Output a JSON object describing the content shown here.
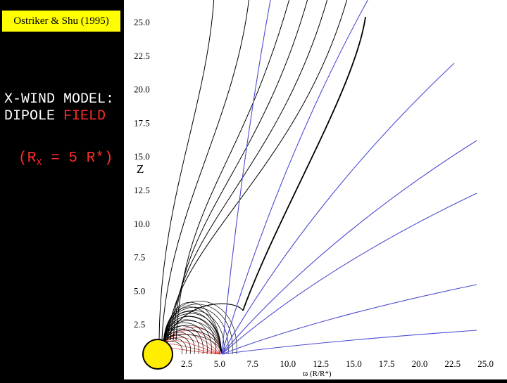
{
  "reference": "Ostriker & Shu (1995)",
  "title": {
    "word1": "X-WIND MODEL:",
    "word2": "DIPOLE",
    "word3": "FIELD"
  },
  "equation": {
    "open": "(R",
    "sub": "X",
    "rest": " = 5 R",
    "star": "*",
    "close": ")"
  },
  "diagram": {
    "y_ticks": [
      "25.0",
      "22.5",
      "20.0",
      "17.5",
      "15.0",
      "12.5",
      "10.0",
      "7.5",
      "5.0",
      "2.5"
    ],
    "x_ticks": [
      "2.5",
      "5.0",
      "7.5",
      "10.0",
      "12.5",
      "15.0",
      "17.5",
      "20.0",
      "22.5",
      "25.0"
    ],
    "y_label": "Z",
    "x_label": "ϖ (R/R*)",
    "colors": {
      "closed_lines": "#000000",
      "open_lines": "#4b4bd2",
      "inner_lines": "#e24a4a",
      "star": "#ffee00",
      "background": "#ffffff"
    }
  }
}
